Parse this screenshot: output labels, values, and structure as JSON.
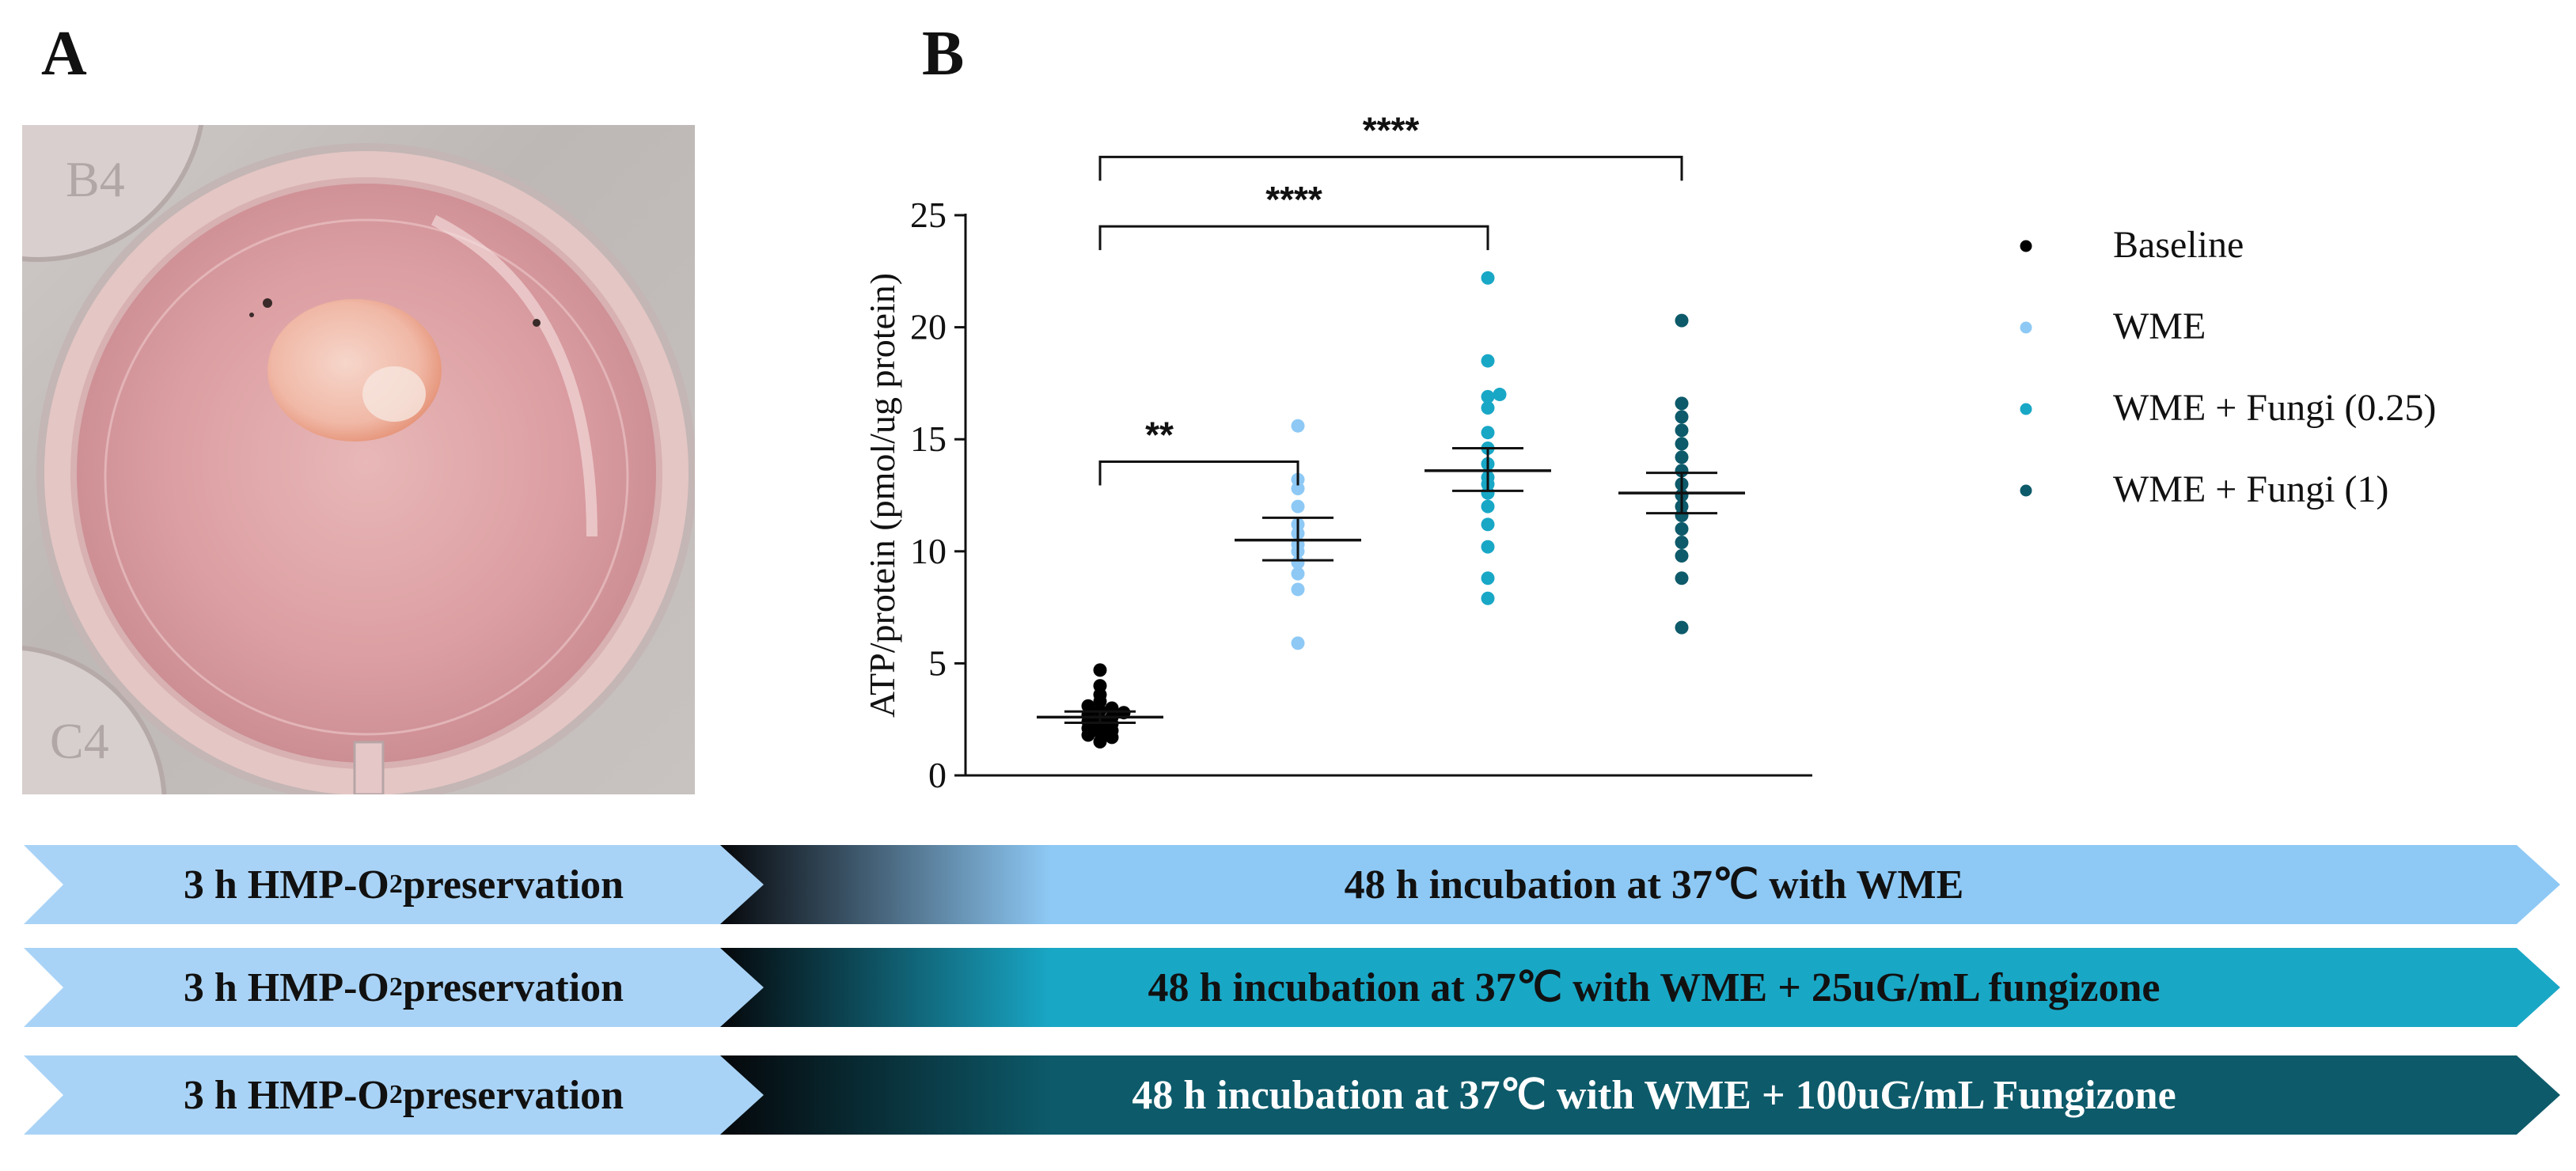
{
  "panels": {
    "a_label": "A",
    "b_label": "B"
  },
  "colors": {
    "baseline": "#000000",
    "wme": "#8ec9f5",
    "wme_fungi_025": "#19a7c6",
    "wme_fungi_1": "#0d5a6a",
    "banner_light": "#a9d3f6"
  },
  "chart_data": {
    "type": "scatter",
    "subtype": "dot-plot with mean and SEM",
    "ylabel": "ATP/protein (pmol/ug protein)",
    "xlabel": "",
    "ylim": [
      0,
      25
    ],
    "yticks": [
      0,
      5,
      10,
      15,
      20,
      25
    ],
    "legend_position": "right",
    "series": [
      {
        "name": "Baseline",
        "color": "#000000",
        "mean": 2.6,
        "sem_low": 2.35,
        "sem_high": 2.85,
        "values": [
          1.5,
          1.7,
          1.8,
          1.9,
          2.0,
          2.1,
          2.2,
          2.3,
          2.4,
          2.5,
          2.6,
          2.7,
          2.8,
          2.9,
          3.0,
          3.1,
          3.3,
          3.6,
          4.0,
          4.7
        ]
      },
      {
        "name": "WME",
        "color": "#8ec9f5",
        "mean": 10.5,
        "sem_low": 9.6,
        "sem_high": 11.5,
        "values": [
          5.9,
          8.3,
          9.0,
          9.5,
          10.0,
          10.3,
          10.8,
          11.2,
          12.0,
          12.8,
          13.2,
          15.6
        ]
      },
      {
        "name": "WME + Fungi (0.25)",
        "color": "#19a7c6",
        "mean": 13.6,
        "sem_low": 12.7,
        "sem_high": 14.6,
        "values": [
          7.9,
          8.8,
          10.2,
          11.2,
          12.0,
          12.6,
          13.0,
          13.3,
          13.9,
          14.6,
          15.3,
          16.4,
          16.9,
          17.0,
          18.5,
          22.2
        ]
      },
      {
        "name": "WME + Fungi (1)",
        "color": "#0d5a6a",
        "mean": 12.6,
        "sem_low": 11.7,
        "sem_high": 13.5,
        "values": [
          6.6,
          8.8,
          9.8,
          10.4,
          11.0,
          11.6,
          12.0,
          12.5,
          13.0,
          13.6,
          14.2,
          14.8,
          15.4,
          16.0,
          16.6,
          20.3
        ]
      }
    ],
    "significance": [
      {
        "from": 0,
        "to": 1,
        "label": "**",
        "level": 14.0
      },
      {
        "from": 0,
        "to": 2,
        "label": "****",
        "level": 24.5
      },
      {
        "from": 0,
        "to": 3,
        "label": "****",
        "level": 27.6
      }
    ]
  },
  "timeline": [
    {
      "left_text": "3 h HMP-O",
      "left_sub": "2",
      "left_suffix": " preservation",
      "right_text": "48 h incubation at 37℃ with WME",
      "right_color": "#8ec9f5",
      "text_color": "#111111"
    },
    {
      "left_text": "3 h HMP-O",
      "left_sub": "2",
      "left_suffix": " preservation",
      "right_text": "48 h incubation at 37℃ with WME + 25uG/mL fungizone",
      "right_color": "#19a7c6",
      "text_color": "#111111"
    },
    {
      "left_text": "3 h HMP-O",
      "left_sub": "2",
      "left_suffix": " preservation",
      "right_text": "48 h incubation at 37℃ with WME + 100uG/mL Fungizone",
      "right_color": "#0d5a6a",
      "text_color": "#ffffff"
    }
  ],
  "photo": {
    "well_text_top": "B4",
    "well_text_bottom": "C4"
  }
}
